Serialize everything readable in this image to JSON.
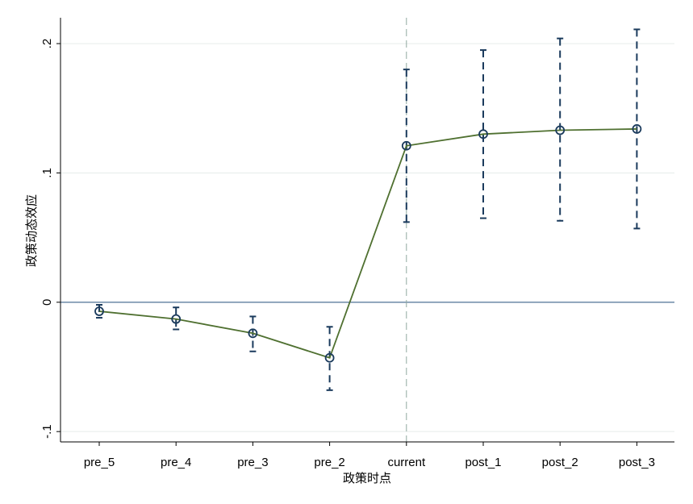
{
  "chart_data": {
    "type": "line",
    "xlabel": "政策时点",
    "ylabel": "政策动态效应",
    "categories": [
      "pre_5",
      "pre_4",
      "pre_3",
      "pre_2",
      "current",
      "post_1",
      "post_2",
      "post_3"
    ],
    "yticks": [
      -0.1,
      0,
      0.1,
      0.2
    ],
    "ytick_labels": [
      "-.1",
      "0",
      ".1",
      ".2"
    ],
    "ylim": [
      -0.108,
      0.22
    ],
    "reference_lines": {
      "y": 0,
      "x_category": "current"
    },
    "grid": true,
    "series": [
      {
        "values": [
          -0.007,
          -0.013,
          -0.024,
          -0.043,
          0.121,
          0.13,
          0.133,
          0.134
        ],
        "ci_lower": [
          -0.012,
          -0.021,
          -0.038,
          -0.068,
          0.062,
          0.065,
          0.063,
          0.057
        ],
        "ci_upper": [
          -0.002,
          -0.004,
          -0.011,
          -0.019,
          0.18,
          0.195,
          0.204,
          0.211
        ]
      }
    ],
    "colors": {
      "line": "#4f7030",
      "marker": "#1a3a5c",
      "ci": "#1a3a5c",
      "zero_line": "#5f7f9f",
      "event_line": "#8fa8a0",
      "grid": "#e6ecea",
      "axis": "#000000"
    }
  }
}
